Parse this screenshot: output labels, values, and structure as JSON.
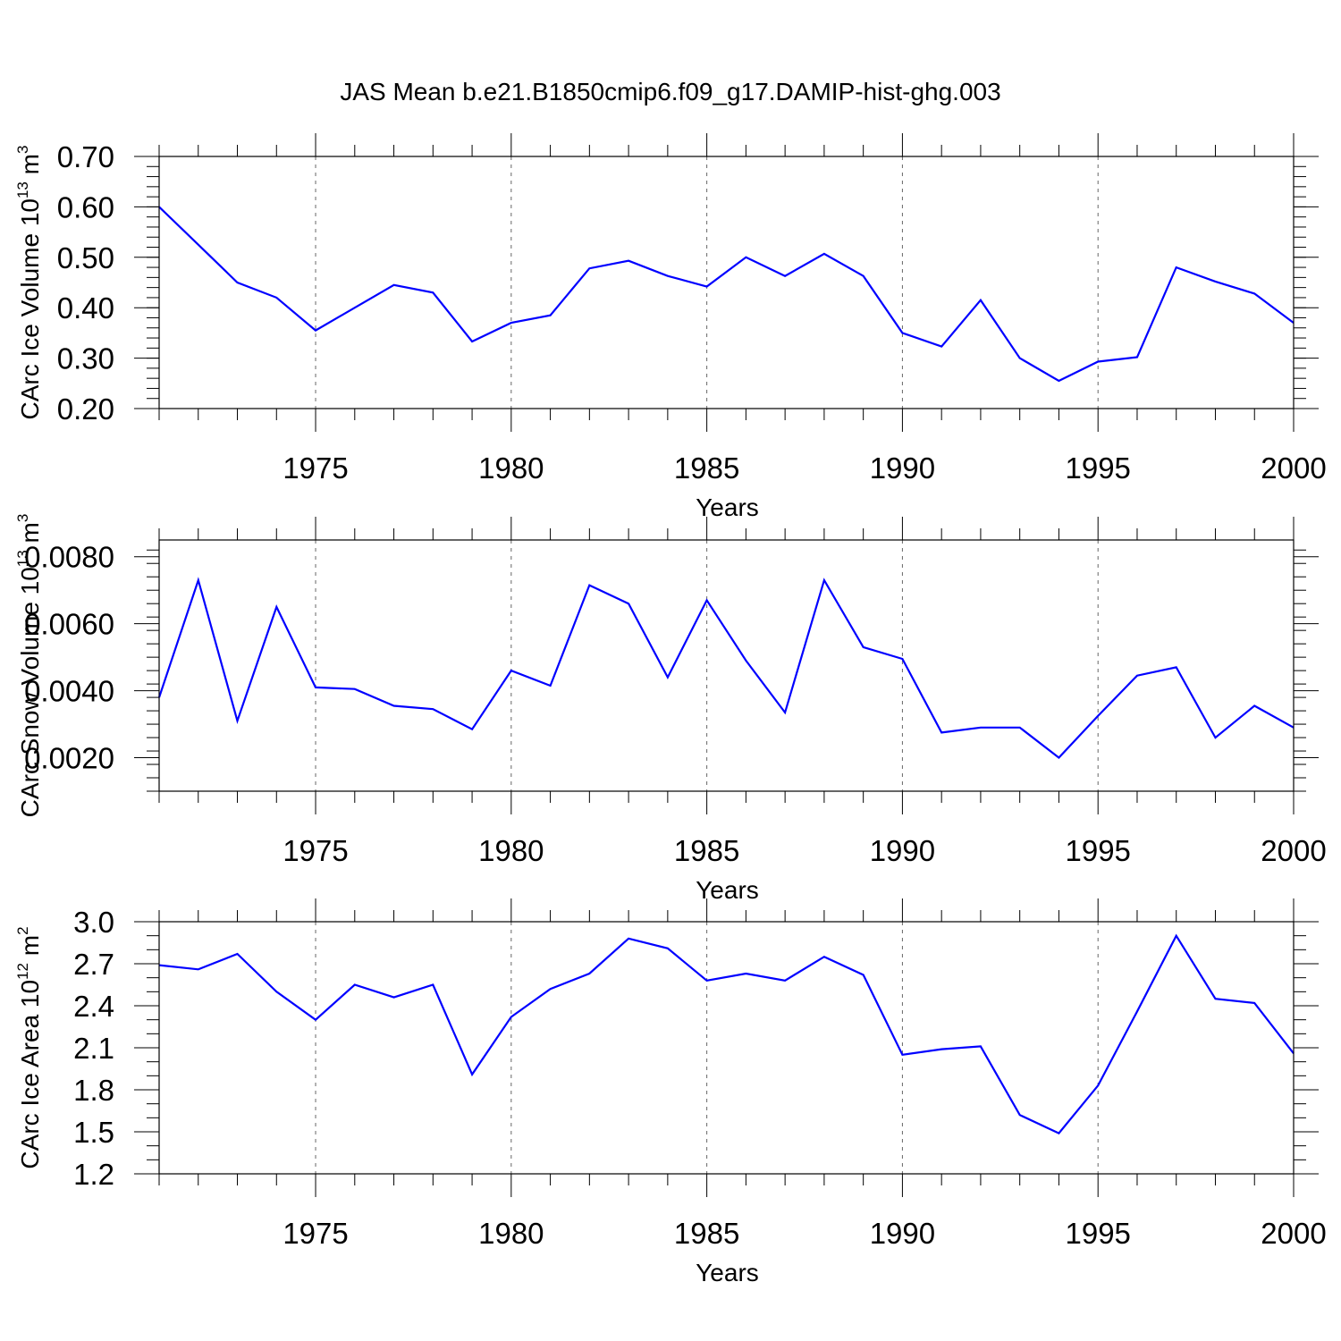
{
  "figure": {
    "title": "JAS Mean b.e21.B1850cmip6.f09_g17.DAMIP-hist-ghg.003",
    "series_color": "#0000ff"
  },
  "chart_data": [
    {
      "type": "line",
      "title": "JAS Mean b.e21.B1850cmip6.f09_g17.DAMIP-hist-ghg.003",
      "xlabel": "Years",
      "ylabel": {
        "text": "CArc Ice Volume 10",
        "sup": "13",
        "unit": "m",
        "unit_sup": "3"
      },
      "xlim": [
        1971,
        2000
      ],
      "ylim": [
        0.2,
        0.7
      ],
      "x_ticks": [
        1975,
        1980,
        1985,
        1990,
        1995,
        2000
      ],
      "x_tick_labels": [
        "1975",
        "1980",
        "1985",
        "1990",
        "1995",
        "2000"
      ],
      "y_ticks": [
        0.2,
        0.3,
        0.4,
        0.5,
        0.6,
        0.7
      ],
      "y_tick_labels": [
        "0.20",
        "0.30",
        "0.40",
        "0.50",
        "0.60",
        "0.70"
      ],
      "y_minor_step": 0.02,
      "grid": "vertical dashed at major x ticks",
      "x": [
        1971,
        1972,
        1973,
        1974,
        1975,
        1976,
        1977,
        1978,
        1979,
        1980,
        1981,
        1982,
        1983,
        1984,
        1985,
        1986,
        1987,
        1988,
        1989,
        1990,
        1991,
        1992,
        1993,
        1994,
        1995,
        1996,
        1997,
        1998,
        1999,
        2000
      ],
      "values": [
        0.6,
        0.525,
        0.45,
        0.42,
        0.355,
        0.4,
        0.445,
        0.43,
        0.333,
        0.37,
        0.385,
        0.478,
        0.493,
        0.463,
        0.442,
        0.5,
        0.463,
        0.507,
        0.463,
        0.35,
        0.323,
        0.415,
        0.3,
        0.255,
        0.293,
        0.302,
        0.48,
        0.452,
        0.428,
        0.37
      ]
    },
    {
      "type": "line",
      "xlabel": "Years",
      "ylabel": {
        "text": "CArc Snow Volume 10",
        "sup": "13",
        "unit": "m",
        "unit_sup": "3"
      },
      "xlim": [
        1971,
        2000
      ],
      "ylim": [
        0.001,
        0.0085
      ],
      "x_ticks": [
        1975,
        1980,
        1985,
        1990,
        1995,
        2000
      ],
      "x_tick_labels": [
        "1975",
        "1980",
        "1985",
        "1990",
        "1995",
        "2000"
      ],
      "y_ticks": [
        0.002,
        0.004,
        0.006,
        0.008
      ],
      "y_tick_labels": [
        "0.0020",
        "0.0040",
        "0.0060",
        "0.0080"
      ],
      "y_minor_step": 0.0004,
      "grid": "vertical dashed at major x ticks",
      "x": [
        1971,
        1972,
        1973,
        1974,
        1975,
        1976,
        1977,
        1978,
        1979,
        1980,
        1981,
        1982,
        1983,
        1984,
        1985,
        1986,
        1987,
        1988,
        1989,
        1990,
        1991,
        1992,
        1993,
        1994,
        1995,
        1996,
        1997,
        1998,
        1999,
        2000
      ],
      "values": [
        0.0038,
        0.0073,
        0.0031,
        0.0065,
        0.0041,
        0.00405,
        0.00355,
        0.00345,
        0.00285,
        0.0046,
        0.00415,
        0.00715,
        0.0066,
        0.0044,
        0.0067,
        0.0049,
        0.00335,
        0.0073,
        0.0053,
        0.00495,
        0.00275,
        0.0029,
        0.0029,
        0.002,
        0.00325,
        0.00445,
        0.0047,
        0.0026,
        0.00355,
        0.0029
      ]
    },
    {
      "type": "line",
      "xlabel": "Years",
      "ylabel": {
        "text": "CArc Ice Area 10",
        "sup": "12",
        "unit": "m",
        "unit_sup": "2"
      },
      "xlim": [
        1971,
        2000
      ],
      "ylim": [
        1.2,
        3.0
      ],
      "x_ticks": [
        1975,
        1980,
        1985,
        1990,
        1995,
        2000
      ],
      "x_tick_labels": [
        "1975",
        "1980",
        "1985",
        "1990",
        "1995",
        "2000"
      ],
      "y_ticks": [
        1.2,
        1.5,
        1.8,
        2.1,
        2.4,
        2.7,
        3.0
      ],
      "y_tick_labels": [
        "1.2",
        "1.5",
        "1.8",
        "2.1",
        "2.4",
        "2.7",
        "3.0"
      ],
      "y_minor_step": 0.1,
      "grid": "vertical dashed at major x ticks",
      "x": [
        1971,
        1972,
        1973,
        1974,
        1975,
        1976,
        1977,
        1978,
        1979,
        1980,
        1981,
        1982,
        1983,
        1984,
        1985,
        1986,
        1987,
        1988,
        1989,
        1990,
        1991,
        1992,
        1993,
        1994,
        1995,
        1996,
        1997,
        1998,
        1999,
        2000
      ],
      "values": [
        2.69,
        2.66,
        2.77,
        2.5,
        2.3,
        2.55,
        2.46,
        2.55,
        1.91,
        2.32,
        2.52,
        2.63,
        2.88,
        2.81,
        2.58,
        2.63,
        2.58,
        2.75,
        2.62,
        2.05,
        2.09,
        2.11,
        1.62,
        1.49,
        1.83,
        2.36,
        2.9,
        2.45,
        2.42,
        2.06
      ]
    }
  ]
}
